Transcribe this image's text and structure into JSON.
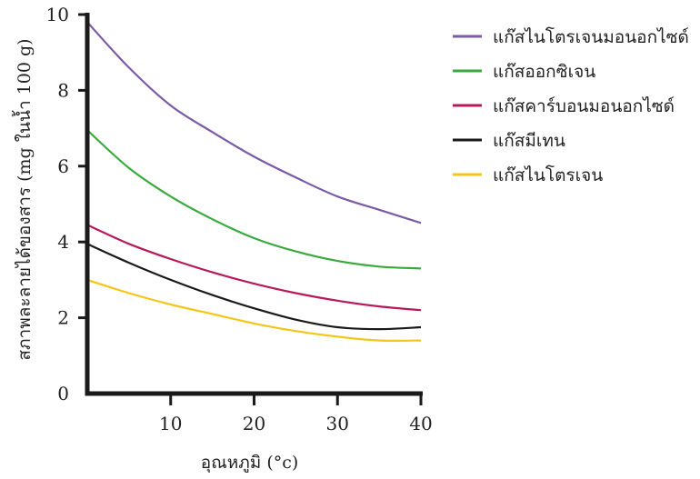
{
  "chart_data": {
    "type": "line",
    "title": "",
    "xlabel": "อุณหภูมิ (°c)",
    "ylabel": "สภาพละลายได้ของสาร (mg ในน้ำ 100 g)",
    "xlim": [
      0,
      40
    ],
    "ylim": [
      0,
      10
    ],
    "x_ticks": [
      10,
      20,
      30,
      40
    ],
    "x_tick_labels": [
      "10",
      "20",
      "30",
      "40"
    ],
    "y_ticks": [
      0,
      2,
      4,
      6,
      8,
      10
    ],
    "y_tick_labels": [
      "0",
      "2",
      "4",
      "6",
      "8",
      "10"
    ],
    "grid": false,
    "legend_position": "top-right",
    "x": [
      0,
      5,
      10,
      15,
      20,
      25,
      30,
      35,
      40
    ],
    "series": [
      {
        "name": "แก๊สไนโตรเจนมอนอกไซด์",
        "color": "#7b5aa6",
        "values": [
          9.8,
          8.6,
          7.6,
          6.9,
          6.25,
          5.7,
          5.2,
          4.85,
          4.5
        ]
      },
      {
        "name": "แก๊สออกซิเจน",
        "color": "#3aaa3e",
        "values": [
          6.95,
          5.95,
          5.2,
          4.6,
          4.1,
          3.75,
          3.5,
          3.35,
          3.3
        ]
      },
      {
        "name": "แก๊สคาร์บอนมอนอกไซด์",
        "color": "#b8195a",
        "values": [
          4.45,
          3.95,
          3.55,
          3.2,
          2.9,
          2.65,
          2.45,
          2.3,
          2.2
        ]
      },
      {
        "name": "แก๊สมีเทน",
        "color": "#1a1a1a",
        "values": [
          3.95,
          3.45,
          3.0,
          2.6,
          2.25,
          1.95,
          1.75,
          1.7,
          1.75
        ]
      },
      {
        "name": "แก๊สไนโตรเจน",
        "color": "#f5c518",
        "values": [
          3.0,
          2.65,
          2.35,
          2.1,
          1.85,
          1.65,
          1.5,
          1.4,
          1.4
        ]
      }
    ]
  }
}
